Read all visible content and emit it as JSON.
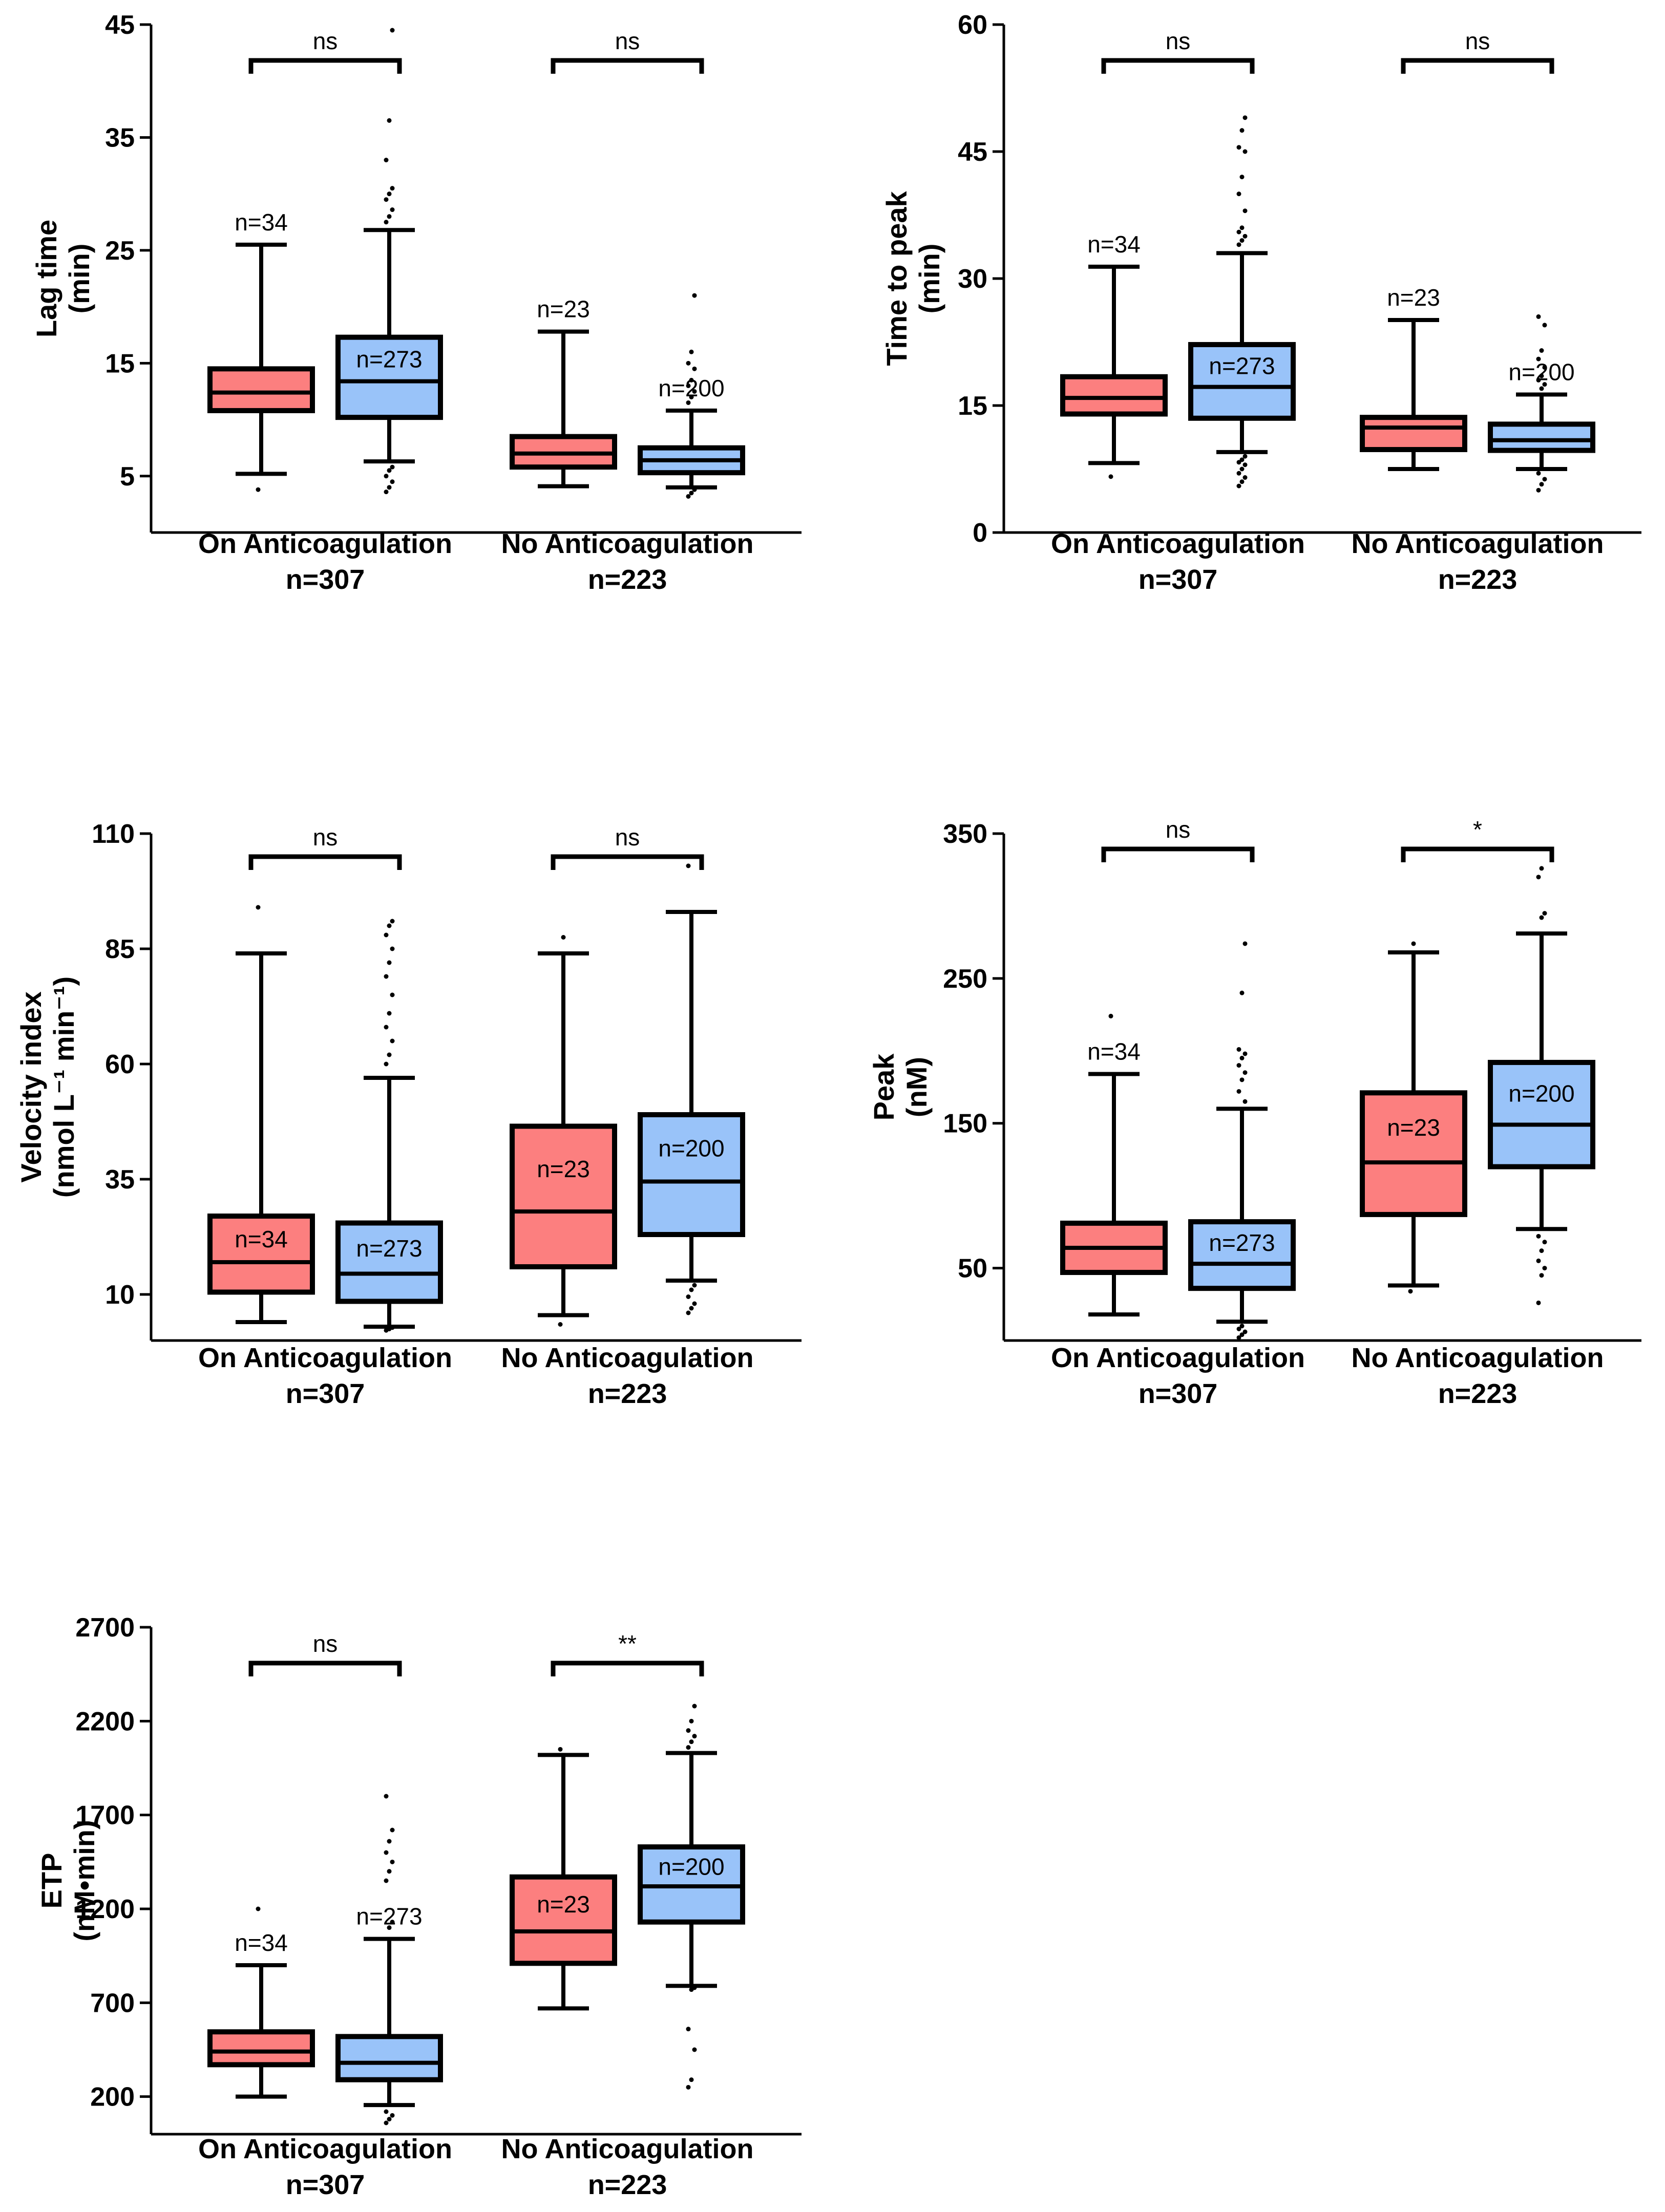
{
  "colors": {
    "red": "#FC7F7F",
    "blue": "#99C3F9",
    "black": "#000000"
  },
  "chart_data": [
    {
      "type": "box",
      "ylabel": [
        "Lag time",
        "(min)"
      ],
      "ylim": [
        0,
        45
      ],
      "yticks": [
        5,
        15,
        25,
        35,
        45
      ],
      "groups": [
        {
          "label": "On Anticoagulation",
          "n_label": "n=307",
          "significance": "ns"
        },
        {
          "label": "No Anticoagulation",
          "n_label": "n=223",
          "significance": "ns"
        }
      ],
      "boxes": [
        {
          "group": 0,
          "color": "red",
          "n": "n=34",
          "n_pos": "above",
          "whisker_low": 5.2,
          "q1": 10.8,
          "median": 12.4,
          "q3": 14.5,
          "whisker_high": 25.5,
          "outliers": [
            3.8
          ]
        },
        {
          "group": 0,
          "color": "blue",
          "n": "n=273",
          "n_pos": "inside",
          "whisker_low": 6.3,
          "q1": 10.2,
          "median": 13.4,
          "q3": 17.3,
          "whisker_high": 26.8,
          "outliers": [
            3.6,
            4.0,
            4.5,
            5.0,
            5.5,
            5.8,
            27.5,
            28.0,
            28.6,
            29.5,
            30.0,
            30.5,
            33.0,
            36.5,
            44.5
          ]
        },
        {
          "group": 1,
          "color": "red",
          "n": "n=23",
          "n_pos": "above",
          "whisker_low": 4.1,
          "q1": 5.8,
          "median": 7.0,
          "q3": 8.5,
          "whisker_high": 17.8,
          "outliers": []
        },
        {
          "group": 1,
          "color": "blue",
          "n": "n=200",
          "n_pos": "above",
          "whisker_low": 4.0,
          "q1": 5.3,
          "median": 6.4,
          "q3": 7.5,
          "whisker_high": 10.8,
          "outliers": [
            3.2,
            3.5,
            3.8,
            11.5,
            12.0,
            12.5,
            13.0,
            13.5,
            14.5,
            15.0,
            16.0,
            21.0
          ]
        }
      ]
    },
    {
      "type": "box",
      "ylabel": [
        "Time to peak",
        "(min)"
      ],
      "ylim": [
        0,
        60
      ],
      "yticks": [
        0,
        15,
        30,
        45,
        60
      ],
      "groups": [
        {
          "label": "On Anticoagulation",
          "n_label": "n=307",
          "significance": "ns"
        },
        {
          "label": "No Anticoagulation",
          "n_label": "n=223",
          "significance": "ns"
        }
      ],
      "boxes": [
        {
          "group": 0,
          "color": "red",
          "n": "n=34",
          "n_pos": "above",
          "whisker_low": 8.2,
          "q1": 14.0,
          "median": 15.9,
          "q3": 18.4,
          "whisker_high": 31.4,
          "outliers": [
            6.6
          ]
        },
        {
          "group": 0,
          "color": "blue",
          "n": "n=273",
          "n_pos": "inside",
          "whisker_low": 9.5,
          "q1": 13.5,
          "median": 17.2,
          "q3": 22.2,
          "whisker_high": 33.0,
          "outliers": [
            5.5,
            6.0,
            6.5,
            7.0,
            7.5,
            8.0,
            8.3,
            8.6,
            9.0,
            34.0,
            34.5,
            35.0,
            35.5,
            36.0,
            38.0,
            40.0,
            42.0,
            45.0,
            45.5,
            47.5,
            49.0
          ]
        },
        {
          "group": 1,
          "color": "red",
          "n": "n=23",
          "n_pos": "above",
          "whisker_low": 7.5,
          "q1": 9.8,
          "median": 12.4,
          "q3": 13.6,
          "whisker_high": 25.1,
          "outliers": []
        },
        {
          "group": 1,
          "color": "blue",
          "n": "n=200",
          "n_pos": "above",
          "whisker_low": 7.5,
          "q1": 9.7,
          "median": 10.9,
          "q3": 12.8,
          "whisker_high": 16.3,
          "outliers": [
            5.0,
            5.7,
            6.3,
            7.0,
            17.0,
            17.5,
            18.0,
            18.5,
            19.5,
            20.5,
            21.5,
            24.5,
            25.5
          ]
        }
      ]
    },
    {
      "type": "box",
      "ylabel": [
        "Velocity index",
        "(nmol L⁻¹ min⁻¹)"
      ],
      "ylim": [
        0,
        110
      ],
      "yticks": [
        10,
        35,
        60,
        85,
        110
      ],
      "groups": [
        {
          "label": "On Anticoagulation",
          "n_label": "n=307",
          "significance": "ns"
        },
        {
          "label": "No Anticoagulation",
          "n_label": "n=223",
          "significance": "ns"
        }
      ],
      "boxes": [
        {
          "group": 0,
          "color": "red",
          "n": "n=34",
          "n_pos": "inside",
          "whisker_low": 4.0,
          "q1": 10.5,
          "median": 17.0,
          "q3": 27.0,
          "whisker_high": 84.0,
          "outliers": [
            94.0
          ]
        },
        {
          "group": 0,
          "color": "blue",
          "n": "n=273",
          "n_pos": "inside",
          "whisker_low": 3.0,
          "q1": 8.5,
          "median": 14.5,
          "q3": 25.5,
          "whisker_high": 57.0,
          "outliers": [
            2.2,
            2.5,
            2.8,
            60.0,
            62.0,
            65.0,
            68.0,
            71.0,
            75.0,
            79.0,
            82.0,
            85.0,
            88.0,
            90.0,
            91.0
          ]
        },
        {
          "group": 1,
          "color": "red",
          "n": "n=23",
          "n_pos": "inside",
          "whisker_low": 5.5,
          "q1": 16.0,
          "median": 28.0,
          "q3": 46.5,
          "whisker_high": 84.0,
          "outliers": [
            3.5,
            87.5
          ]
        },
        {
          "group": 1,
          "color": "blue",
          "n": "n=200",
          "n_pos": "inside",
          "whisker_low": 13.0,
          "q1": 23.0,
          "median": 34.5,
          "q3": 49.0,
          "whisker_high": 93.0,
          "outliers": [
            6.0,
            7.0,
            8.0,
            9.5,
            11.0,
            12.0,
            103.0
          ]
        }
      ]
    },
    {
      "type": "box",
      "ylabel": [
        "Peak",
        "(nM)"
      ],
      "ylim": [
        0,
        350
      ],
      "yticks": [
        50,
        150,
        250,
        350
      ],
      "groups": [
        {
          "label": "On Anticoagulation",
          "n_label": "n=307",
          "significance": "ns"
        },
        {
          "label": "No Anticoagulation",
          "n_label": "n=223",
          "significance": "*"
        }
      ],
      "boxes": [
        {
          "group": 0,
          "color": "red",
          "n": "n=34",
          "n_pos": "above",
          "whisker_low": 18.0,
          "q1": 47.0,
          "median": 64.0,
          "q3": 81.0,
          "whisker_high": 184.0,
          "outliers": [
            224.0
          ]
        },
        {
          "group": 0,
          "color": "blue",
          "n": "n=273",
          "n_pos": "inside",
          "whisker_low": 13.0,
          "q1": 36.0,
          "median": 53.0,
          "q3": 82.0,
          "whisker_high": 160.0,
          "outliers": [
            2.0,
            4.0,
            6.0,
            8.0,
            10.0,
            165.0,
            172.0,
            180.0,
            185.0,
            190.0,
            195.0,
            198.0,
            201.0,
            240.0,
            274.0
          ]
        },
        {
          "group": 1,
          "color": "red",
          "n": "n=23",
          "n_pos": "inside",
          "whisker_low": 38.0,
          "q1": 87.0,
          "median": 123.0,
          "q3": 171.0,
          "whisker_high": 268.0,
          "outliers": [
            34.0,
            274.0
          ]
        },
        {
          "group": 1,
          "color": "blue",
          "n": "n=200",
          "n_pos": "inside",
          "whisker_low": 77.0,
          "q1": 120.0,
          "median": 149.0,
          "q3": 192.0,
          "whisker_high": 281.0,
          "outliers": [
            26.0,
            45.0,
            50.0,
            55.0,
            62.0,
            68.0,
            72.0,
            292.0,
            295.0,
            320.0,
            326.0
          ]
        }
      ]
    },
    {
      "type": "box",
      "ylabel": [
        "ETP",
        "(nM•min)"
      ],
      "ylim": [
        0,
        2700
      ],
      "yticks": [
        200,
        700,
        1200,
        1700,
        2200,
        2700
      ],
      "groups": [
        {
          "label": "On Anticoagulation",
          "n_label": "n=307",
          "significance": "ns"
        },
        {
          "label": "No Anticoagulation",
          "n_label": "n=223",
          "significance": "**"
        }
      ],
      "boxes": [
        {
          "group": 0,
          "color": "red",
          "n": "n=34",
          "n_pos": "above",
          "whisker_low": 200.0,
          "q1": 370.0,
          "median": 440.0,
          "q3": 545.0,
          "whisker_high": 900.0,
          "outliers": [
            1200.0
          ]
        },
        {
          "group": 0,
          "color": "blue",
          "n": "n=273",
          "n_pos": "above",
          "whisker_low": 155.0,
          "q1": 290.0,
          "median": 380.0,
          "q3": 520.0,
          "whisker_high": 1040.0,
          "outliers": [
            60.0,
            80.0,
            100.0,
            120.0,
            1100.0,
            1130.0,
            1350.0,
            1400.0,
            1450.0,
            1500.0,
            1560.0,
            1620.0,
            1800.0
          ]
        },
        {
          "group": 1,
          "color": "red",
          "n": "n=23",
          "n_pos": "inside",
          "whisker_low": 670.0,
          "q1": 910.0,
          "median": 1080.0,
          "q3": 1370.0,
          "whisker_high": 2020.0,
          "outliers": [
            2050.0
          ]
        },
        {
          "group": 1,
          "color": "blue",
          "n": "n=200",
          "n_pos": "inside",
          "whisker_low": 790.0,
          "q1": 1130.0,
          "median": 1320.0,
          "q3": 1530.0,
          "whisker_high": 2030.0,
          "outliers": [
            250.0,
            290.0,
            450.0,
            560.0,
            770.0,
            780.0,
            2060.0,
            2090.0,
            2120.0,
            2150.0,
            2200.0,
            2280.0
          ]
        }
      ]
    }
  ]
}
